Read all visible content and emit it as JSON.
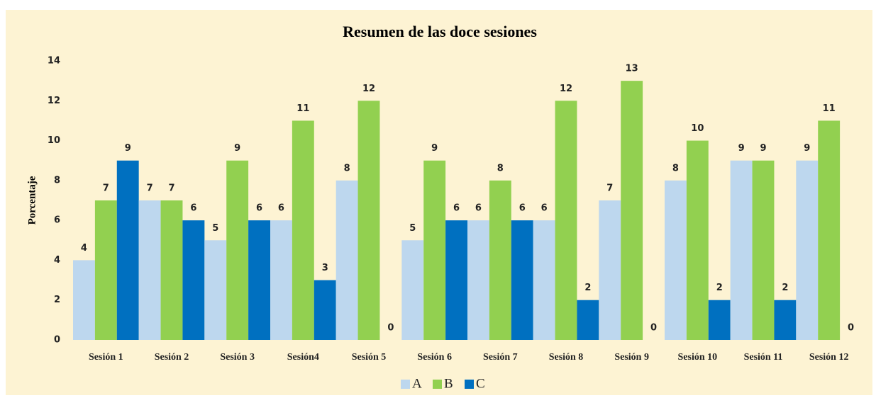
{
  "chart_data": {
    "type": "bar",
    "title": "Resumen de las doce sesiones",
    "y_label": "Porcentaje",
    "categories": [
      "Sesión 1",
      "Sesión 2",
      "Sesión 3",
      "Sesión4",
      "Sesión 5",
      "Sesión 6",
      "Sesión 7",
      "Sesión 8",
      "Sesión 9",
      "Sesión 10",
      "Sesión 11",
      "Sesión 12"
    ],
    "series": [
      {
        "name": "A",
        "color": "#bdd7ee",
        "values": [
          4,
          7,
          5,
          6,
          8,
          5,
          6,
          6,
          7,
          8,
          9,
          9
        ]
      },
      {
        "name": "B",
        "color": "#92d050",
        "values": [
          7,
          7,
          9,
          11,
          12,
          9,
          8,
          12,
          13,
          10,
          9,
          11
        ]
      },
      {
        "name": "C",
        "color": "#0070c0",
        "values": [
          9,
          6,
          6,
          3,
          0,
          6,
          6,
          2,
          0,
          2,
          2,
          0
        ]
      }
    ],
    "ylim": [
      0,
      14
    ],
    "yticks": [
      0,
      2,
      4,
      6,
      8,
      10,
      12,
      14
    ],
    "grid": false,
    "legend": "bottom"
  }
}
